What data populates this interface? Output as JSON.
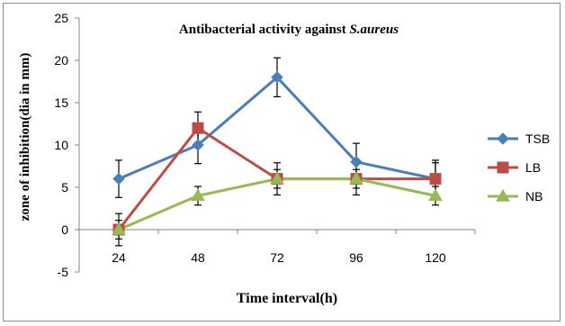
{
  "chart_data": {
    "type": "line",
    "title": "Antibacterial activity against S.aureus",
    "title_main": "Antibacterial activity against ",
    "title_italic": "S.aureus",
    "xlabel": "Time interval(h)",
    "ylabel": "zone of inhibition(dia in mm)",
    "categories": [
      "24",
      "48",
      "72",
      "96",
      "120"
    ],
    "ylim": [
      -5,
      25
    ],
    "yticks": [
      -5,
      0,
      5,
      10,
      15,
      20,
      25
    ],
    "grid": false,
    "legend_position": "right",
    "series": [
      {
        "name": "TSB",
        "color": "#4a7ebb",
        "marker": "diamond",
        "values": [
          6,
          10,
          18,
          8,
          6
        ],
        "error": [
          2.2,
          2.2,
          2.3,
          2.2,
          2.2
        ]
      },
      {
        "name": "LB",
        "color": "#be4b48",
        "marker": "square",
        "values": [
          0,
          12,
          6,
          6,
          6
        ],
        "error": [
          1.9,
          1.9,
          1.9,
          1.9,
          1.9
        ]
      },
      {
        "name": "NB",
        "color": "#98b954",
        "marker": "triangle",
        "values": [
          0,
          4,
          6,
          6,
          4
        ],
        "error": [
          1.1,
          1.1,
          1.1,
          1.1,
          1.1
        ]
      }
    ]
  }
}
